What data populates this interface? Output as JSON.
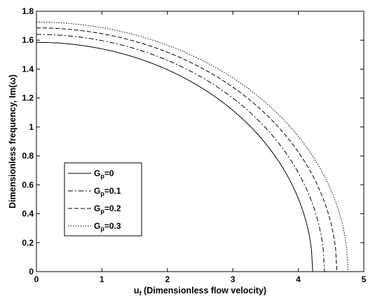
{
  "chart_data": {
    "type": "line",
    "title": "",
    "xlabel": {
      "main": "u",
      "sub": "f",
      "rest": " (Dimensionless flow velocity)"
    },
    "ylabel": "Dimensionless frequency,  Im(ω)",
    "xlim": [
      0,
      5
    ],
    "ylim": [
      0,
      1.8
    ],
    "xticks": [
      "0",
      "1",
      "2",
      "3",
      "4",
      "5"
    ],
    "yticks": [
      "0",
      "0.2",
      "0.4",
      "0.6",
      "0.8",
      "1",
      "1.2",
      "1.4",
      "1.6",
      "1.8"
    ],
    "grid": false,
    "legend_position": "lower-left",
    "series": [
      {
        "name": "G_p=0",
        "label_main": "G",
        "label_sub": "p",
        "label_rest": "=0",
        "style": "solid",
        "a": 4.22,
        "b": 1.585
      },
      {
        "name": "G_p=0.1",
        "label_main": "G",
        "label_sub": "p",
        "label_rest": "=0.1",
        "style": "dashdot",
        "a": 4.4,
        "b": 1.64
      },
      {
        "name": "G_p=0.2",
        "label_main": "G",
        "label_sub": "p",
        "label_rest": "=0.2",
        "style": "dashed",
        "a": 4.59,
        "b": 1.685
      },
      {
        "name": "G_p=0.3",
        "label_main": "G",
        "label_sub": "p",
        "label_rest": "=0.3",
        "style": "dotted",
        "a": 4.76,
        "b": 1.725
      }
    ]
  }
}
